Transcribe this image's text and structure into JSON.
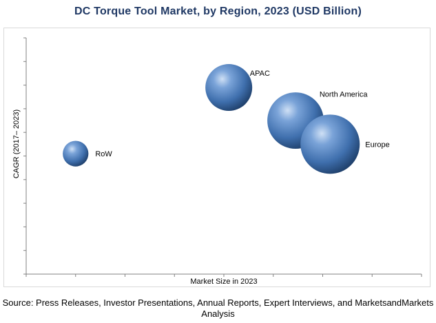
{
  "chart_data": {
    "type": "bubble",
    "title": "DC Torque Tool Market, by Region, 2023 (USD Billion)",
    "xlabel": "Market Size in 2023",
    "ylabel": "CAGR (2017– 2023)",
    "x_ticks_labeled": false,
    "y_ticks_labeled": false,
    "grid": false,
    "legend": "none",
    "xlim": [
      0,
      8
    ],
    "ylim": [
      0,
      10
    ],
    "series": [
      {
        "label": "RoW",
        "x": 1.0,
        "y": 5.1,
        "size": 0.3
      },
      {
        "label": "APAC",
        "x": 4.1,
        "y": 7.9,
        "size": 1.0
      },
      {
        "label": "North America",
        "x": 5.45,
        "y": 6.5,
        "size": 1.45
      },
      {
        "label": "Europe",
        "x": 6.15,
        "y": 5.5,
        "size": 1.6
      }
    ]
  },
  "source_text": "Source: Press Releases, Investor Presentations, Annual Reports, Expert Interviews, and MarketsandMarkets Analysis",
  "colors": {
    "title": "#1f3864",
    "bubble_light": "#a9c6ea",
    "bubble_mid": "#4f81bd",
    "bubble_dark": "#1b3a63",
    "axis": "#808080"
  }
}
